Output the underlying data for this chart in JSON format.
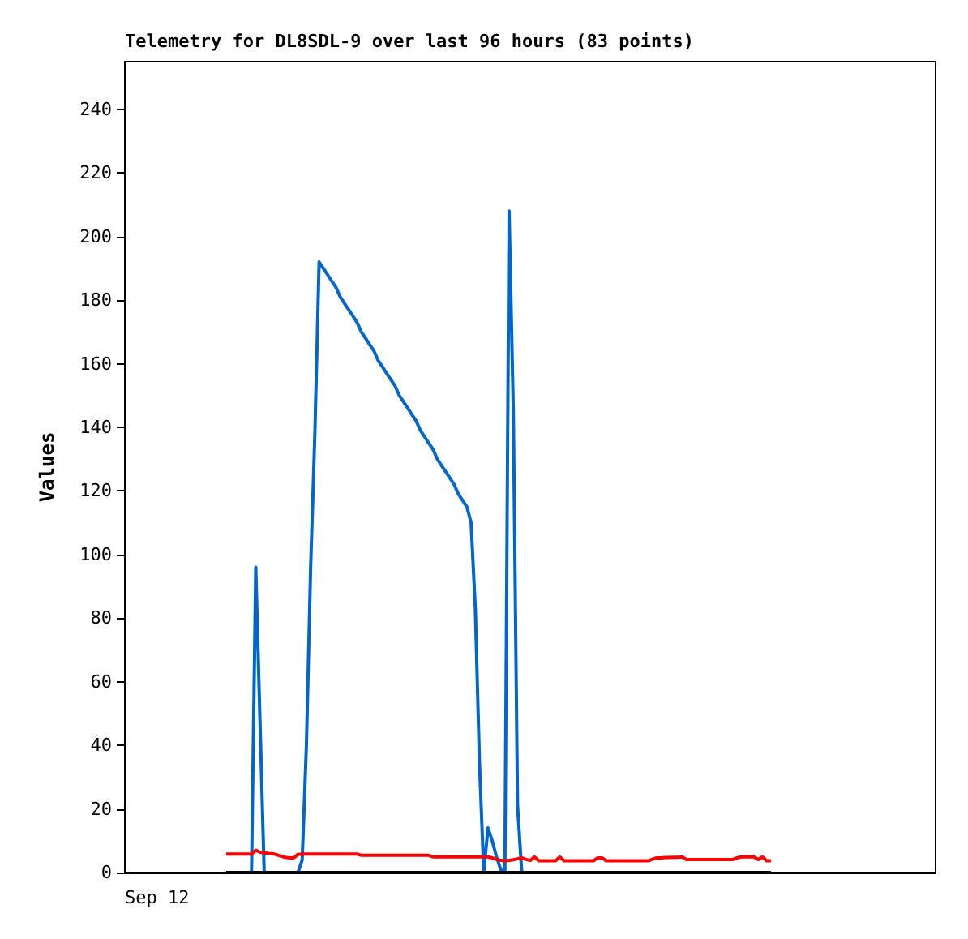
{
  "chart_data": {
    "type": "line",
    "title": "Telemetry for DL8SDL-9 over last 96 hours (83 points)",
    "ylabel": "Values",
    "annotations": [
      "Sep 12"
    ],
    "ylim": [
      0,
      255
    ],
    "yticks": [
      0,
      20,
      40,
      60,
      80,
      100,
      120,
      140,
      160,
      180,
      200,
      220,
      240
    ],
    "grid": false,
    "marker": "none",
    "line_style": "solid",
    "categories": [
      null,
      null,
      null,
      null,
      null,
      null,
      null,
      null,
      null,
      null,
      null,
      null,
      null,
      null,
      null,
      null,
      null,
      null,
      null,
      null,
      null,
      null,
      null,
      null,
      null,
      null,
      null,
      null,
      null,
      null,
      null,
      null,
      null,
      null,
      null,
      null,
      null,
      null,
      null,
      null,
      null,
      null,
      null,
      null,
      null,
      null,
      null,
      null,
      null,
      null,
      null,
      null,
      null,
      null,
      null,
      null,
      null,
      null,
      null,
      null,
      null,
      null,
      null,
      null,
      null,
      null,
      null,
      null,
      null,
      null,
      null,
      null,
      null,
      null,
      null,
      null,
      null,
      null,
      null,
      null,
      null,
      null,
      null,
      null,
      null,
      null,
      null,
      null,
      null,
      null,
      null,
      null,
      null,
      null,
      null,
      null,
      null,
      null,
      null,
      null,
      null,
      null,
      null,
      null,
      null,
      null,
      null,
      null,
      null,
      null,
      null,
      null,
      null,
      null,
      null,
      null,
      null,
      null,
      null,
      null,
      null,
      null,
      null,
      null,
      null,
      null,
      null,
      null,
      null,
      null,
      null,
      null,
      null,
      null,
      null,
      null,
      null,
      null,
      null,
      null,
      null,
      null,
      null,
      null,
      null,
      null,
      null,
      null,
      null,
      null,
      null,
      null,
      null,
      null,
      null,
      null,
      null,
      null,
      null,
      null,
      null,
      null,
      null,
      null,
      null,
      null,
      null,
      null,
      null,
      null,
      null,
      null,
      null,
      null,
      null,
      null,
      null,
      null,
      null,
      null,
      null,
      null,
      null,
      null,
      null,
      null,
      null,
      null,
      null,
      null,
      null,
      null,
      null
    ],
    "series": [
      {
        "color": "#0066cc",
        "values": [
          null,
          null,
          null,
          null,
          null,
          null,
          null,
          null,
          null,
          null,
          null,
          null,
          null,
          null,
          null,
          null,
          null,
          null,
          null,
          null,
          null,
          null,
          null,
          null,
          null,
          null,
          null,
          null,
          null,
          null,
          0,
          96,
          48,
          0,
          0,
          0,
          0,
          0,
          0,
          0,
          0,
          0,
          4,
          40,
          96,
          138,
          192,
          190,
          188,
          186,
          184,
          181,
          179,
          177,
          175,
          173,
          170,
          168,
          166,
          164,
          161,
          159,
          157,
          155,
          153,
          150,
          148,
          146,
          144,
          142,
          139,
          137,
          135,
          133,
          130,
          128,
          126,
          124,
          122,
          119,
          117,
          115,
          110,
          83,
          34,
          0,
          14,
          10,
          5,
          1,
          0,
          208,
          145,
          21,
          0,
          null,
          null,
          null,
          null,
          null,
          null,
          null,
          null,
          null,
          null,
          null,
          null,
          null,
          null,
          null,
          null,
          null,
          null,
          null,
          null,
          null,
          null,
          null,
          null,
          null,
          null,
          null,
          null,
          null,
          null,
          null,
          null,
          null,
          null,
          null,
          null,
          null,
          null,
          null,
          null,
          null,
          null,
          null,
          null,
          null,
          null,
          null,
          null,
          null,
          null,
          null,
          null,
          null,
          null,
          null,
          null,
          null,
          null,
          null,
          null,
          null,
          null,
          null,
          null,
          null,
          null,
          null,
          null,
          null,
          null,
          null,
          null,
          null,
          null,
          null,
          null,
          null,
          null,
          null,
          null,
          null,
          null,
          null,
          null,
          null,
          null,
          null,
          null,
          null,
          null,
          null,
          null,
          null,
          null,
          null,
          null,
          null,
          null
        ]
      },
      {
        "color": "#ff0000",
        "values": [
          null,
          null,
          null,
          null,
          null,
          null,
          null,
          null,
          null,
          null,
          null,
          null,
          null,
          null,
          null,
          null,
          null,
          null,
          null,
          null,
          null,
          null,
          null,
          null,
          5.8,
          5.8,
          5.8,
          5.8,
          5.8,
          5.8,
          5.8,
          7,
          6.4,
          6.2,
          6,
          5.9,
          5.6,
          5.1,
          4.8,
          4.6,
          4.6,
          5.7,
          5.8,
          5.8,
          5.8,
          5.8,
          5.8,
          5.8,
          5.8,
          5.8,
          5.8,
          5.8,
          5.8,
          5.8,
          5.8,
          5.8,
          5.4,
          5.4,
          5.4,
          5.4,
          5.4,
          5.4,
          5.4,
          5.4,
          5.4,
          5.4,
          5.4,
          5.4,
          5.4,
          5.4,
          5.4,
          5.4,
          5.4,
          4.9,
          4.9,
          4.9,
          4.9,
          4.9,
          4.9,
          4.9,
          4.9,
          4.9,
          4.9,
          4.9,
          4.9,
          4.9,
          4.9,
          4.6,
          4.1,
          3.8,
          3.7,
          3.8,
          4,
          4.3,
          4.6,
          4.1,
          3.8,
          4.9,
          3.7,
          3.7,
          3.7,
          3.7,
          3.7,
          4.9,
          3.7,
          3.7,
          3.7,
          3.7,
          3.7,
          3.7,
          3.7,
          3.7,
          4.6,
          4.6,
          3.7,
          3.7,
          3.7,
          3.7,
          3.7,
          3.7,
          3.7,
          3.7,
          3.7,
          3.7,
          3.7,
          4.2,
          4.6,
          4.6,
          4.7,
          4.7,
          4.8,
          4.8,
          4.9,
          4.1,
          4.1,
          4.1,
          4.1,
          4.1,
          4.1,
          4.1,
          4.1,
          4.1,
          4.1,
          4.1,
          4.1,
          4.6,
          4.9,
          4.9,
          4.9,
          4.9,
          4.1,
          4.9,
          3.7,
          3.7,
          null,
          null,
          null,
          null,
          null,
          null,
          null,
          null,
          null,
          null,
          null,
          null,
          null,
          null,
          null,
          null,
          null,
          null,
          null,
          null,
          null,
          null,
          null,
          null,
          null,
          null,
          null,
          null,
          null,
          null,
          null,
          null,
          null,
          null,
          null,
          null,
          null,
          null,
          null
        ]
      },
      {
        "color": "#000000",
        "values": [
          null,
          null,
          null,
          null,
          null,
          null,
          null,
          null,
          null,
          null,
          null,
          null,
          null,
          null,
          null,
          null,
          null,
          null,
          null,
          null,
          null,
          null,
          null,
          null,
          0,
          0,
          0,
          0,
          0,
          0,
          0,
          0,
          0,
          0,
          0,
          0,
          0,
          0,
          0,
          0,
          0,
          0,
          0,
          0,
          0,
          0,
          0,
          0,
          0,
          0,
          0,
          0,
          0,
          0,
          0,
          0,
          0,
          0,
          0,
          0,
          0,
          0,
          0,
          0,
          0,
          0,
          0,
          0,
          0,
          0,
          0,
          0,
          0,
          0,
          0,
          0,
          0,
          0,
          0,
          0,
          0,
          0,
          0,
          0,
          0,
          0,
          0,
          0,
          0,
          0,
          0,
          0,
          0,
          0,
          0,
          0,
          0,
          0,
          0,
          0,
          0,
          0,
          0,
          0,
          0,
          0,
          0,
          0,
          0,
          0,
          0,
          0,
          0,
          0,
          0,
          0,
          0,
          0,
          0,
          0,
          0,
          0,
          0,
          0,
          0,
          0,
          0,
          0,
          0,
          0,
          0,
          0,
          0,
          0,
          0,
          0,
          0,
          0,
          0,
          0,
          0,
          0,
          0,
          0,
          0,
          0,
          0,
          0,
          0,
          0,
          0,
          0,
          0,
          0,
          null,
          null,
          null,
          null,
          null,
          null,
          null,
          null,
          null,
          null,
          null,
          null,
          null,
          null,
          null,
          null,
          null,
          null,
          null,
          null,
          null,
          null,
          null,
          null,
          null,
          null,
          null,
          null,
          null,
          null,
          null,
          null,
          null,
          null,
          null,
          null,
          null,
          null,
          null
        ]
      }
    ]
  }
}
